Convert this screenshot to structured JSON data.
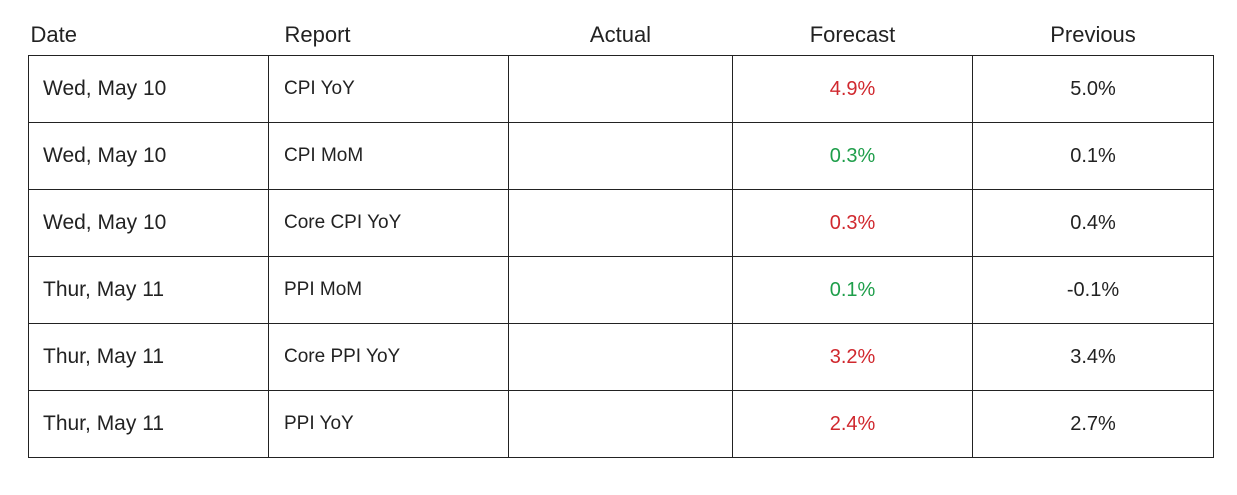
{
  "header": {
    "columns": [
      "Date",
      "Report",
      "Actual",
      "Forecast",
      "Previous"
    ]
  },
  "table": {
    "rows": [
      {
        "date": "Wed, May 10",
        "report": "CPI YoY",
        "forecast": "4.9%",
        "forecast_color": "#d0282e",
        "previous": "5.0%"
      },
      {
        "date": "Wed, May 10",
        "report": "CPI MoM",
        "forecast": "0.3%",
        "forecast_color": "#1e9e4a",
        "previous": "0.1%"
      },
      {
        "date": "Wed, May 10",
        "report": "Core CPI YoY",
        "forecast": "0.3%",
        "forecast_color": "#d0282e",
        "previous": "0.4%"
      },
      {
        "date": "Thur, May 11",
        "report": "PPI MoM",
        "forecast": "0.1%",
        "forecast_color": "#1e9e4a",
        "previous": "-0.1%"
      },
      {
        "date": "Thur, May 11",
        "report": "Core PPI YoY",
        "forecast": "3.2%",
        "forecast_color": "#d0282e",
        "previous": "3.4%"
      },
      {
        "date": "Thur, May 11",
        "report": "PPI YoY",
        "forecast": "2.4%",
        "forecast_color": "#d0282e",
        "previous": "2.7%"
      }
    ]
  }
}
